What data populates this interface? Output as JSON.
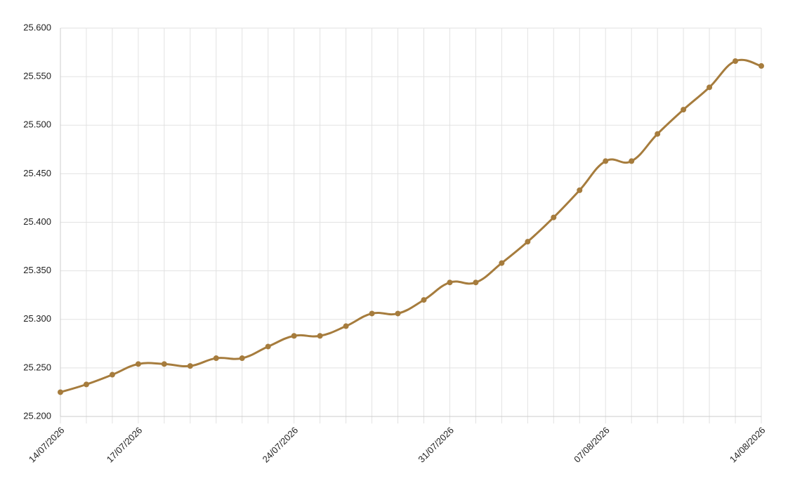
{
  "chart_data": {
    "type": "line",
    "categories": [
      "14/07/2026",
      null,
      null,
      "17/07/2026",
      null,
      null,
      null,
      null,
      null,
      "24/07/2026",
      null,
      null,
      null,
      null,
      null,
      "31/07/2026",
      null,
      null,
      null,
      null,
      null,
      "07/08/2026",
      null,
      null,
      null,
      null,
      null,
      "14/08/2026"
    ],
    "series": [
      {
        "color": "#a67c3d",
        "values": [
          25.225,
          25.233,
          25.243,
          25.254,
          25.254,
          25.252,
          25.26,
          25.26,
          25.272,
          25.283,
          25.283,
          25.293,
          25.306,
          25.306,
          25.32,
          25.338,
          25.338,
          25.358,
          25.38,
          25.405,
          25.433,
          25.463,
          25.463,
          25.491,
          25.516,
          25.539,
          25.566,
          25.561
        ]
      }
    ],
    "ylim": [
      25.2,
      25.6
    ],
    "yticks": [
      {
        "value": 25.2,
        "label": "25.200"
      },
      {
        "value": 25.25,
        "label": "25.250"
      },
      {
        "value": 25.3,
        "label": "25.300"
      },
      {
        "value": 25.35,
        "label": "25.350"
      },
      {
        "value": 25.4,
        "label": "25.400"
      },
      {
        "value": 25.45,
        "label": "25.450"
      },
      {
        "value": 25.5,
        "label": "25.500"
      },
      {
        "value": 25.55,
        "label": "25.550"
      },
      {
        "value": 25.6,
        "label": "25.600"
      }
    ],
    "grid": true
  }
}
